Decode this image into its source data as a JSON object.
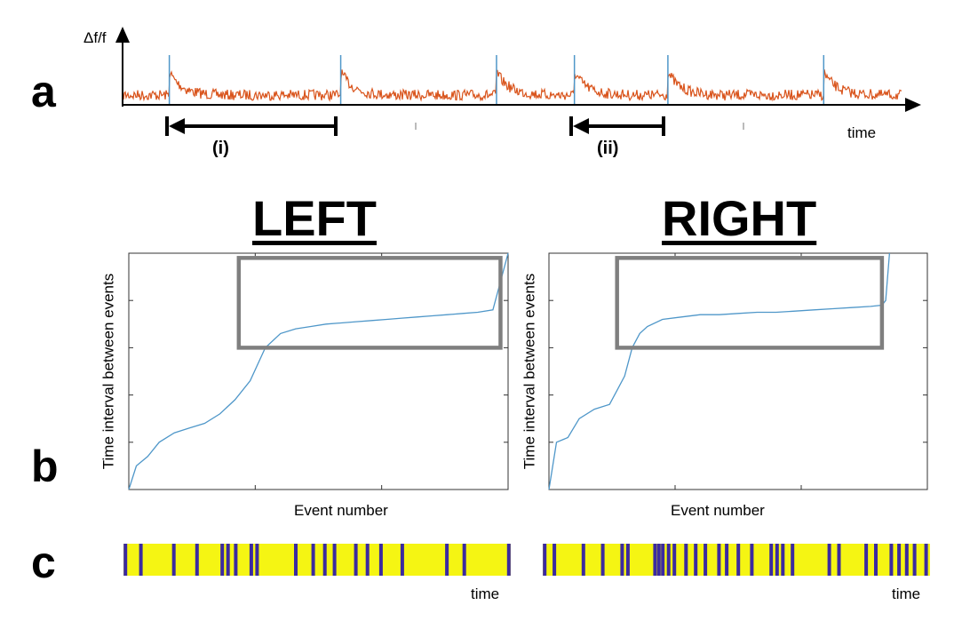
{
  "panels": {
    "a": "a",
    "b": "b",
    "c": "c"
  },
  "trace": {
    "ylabel": "Δf/f",
    "xlabel": "time",
    "interval_i": "(i)",
    "interval_ii": "(ii)",
    "color": "#d9541c",
    "spike_color": "#4f97c9"
  },
  "sides": {
    "left_title": "LEFT",
    "right_title": "RIGHT"
  },
  "chart_data": [
    {
      "type": "line",
      "panel": "a",
      "title": "",
      "xlabel": "time",
      "ylabel": "Δf/f",
      "event_times": [
        0.06,
        0.28,
        0.48,
        0.58,
        0.7,
        0.9
      ],
      "intervals": [
        {
          "label": "(i)",
          "from": 0.06,
          "to": 0.28
        },
        {
          "label": "(ii)",
          "from": 0.58,
          "to": 0.7
        }
      ]
    },
    {
      "type": "line",
      "panel": "b",
      "title": "LEFT",
      "xlabel": "Event number",
      "ylabel": "Time interval between events",
      "x": [
        0,
        2,
        5,
        8,
        12,
        16,
        20,
        24,
        28,
        32,
        36,
        40,
        44,
        48,
        52,
        56,
        60,
        64,
        68,
        72,
        76,
        80,
        84,
        88,
        92,
        96,
        100
      ],
      "y": [
        0.0,
        0.1,
        0.14,
        0.2,
        0.24,
        0.26,
        0.28,
        0.32,
        0.38,
        0.46,
        0.6,
        0.66,
        0.68,
        0.69,
        0.7,
        0.705,
        0.71,
        0.715,
        0.72,
        0.725,
        0.73,
        0.735,
        0.74,
        0.745,
        0.75,
        0.76,
        1.0
      ],
      "box": {
        "x": [
          29,
          98
        ],
        "y": [
          0.6,
          0.98
        ]
      }
    },
    {
      "type": "line",
      "panel": "b",
      "title": "RIGHT",
      "xlabel": "Event number",
      "ylabel": "Time interval between events",
      "x": [
        0,
        2,
        5,
        8,
        12,
        16,
        18,
        20,
        22,
        24,
        26,
        30,
        35,
        40,
        45,
        50,
        55,
        60,
        65,
        70,
        75,
        80,
        85,
        88,
        89,
        90
      ],
      "y": [
        0.0,
        0.2,
        0.22,
        0.3,
        0.34,
        0.36,
        0.42,
        0.48,
        0.6,
        0.66,
        0.69,
        0.72,
        0.73,
        0.74,
        0.74,
        0.745,
        0.75,
        0.75,
        0.755,
        0.76,
        0.765,
        0.77,
        0.775,
        0.78,
        0.8,
        1.0
      ],
      "box": {
        "x": [
          18,
          88
        ],
        "y": [
          0.6,
          0.98
        ]
      }
    },
    {
      "type": "heatmap",
      "panel": "c",
      "title": "LEFT",
      "xlabel": "time",
      "background": "#f5f513",
      "event_color": "#3b2aa0",
      "events": [
        0.005,
        0.045,
        0.13,
        0.19,
        0.255,
        0.27,
        0.29,
        0.33,
        0.345,
        0.445,
        0.49,
        0.52,
        0.545,
        0.6,
        0.63,
        0.665,
        0.72,
        0.835,
        0.88,
        0.995
      ]
    },
    {
      "type": "heatmap",
      "panel": "c",
      "title": "RIGHT",
      "xlabel": "time",
      "background": "#f5f513",
      "event_color": "#3b2aa0",
      "events": [
        0.005,
        0.03,
        0.105,
        0.155,
        0.205,
        0.22,
        0.29,
        0.3,
        0.31,
        0.325,
        0.34,
        0.37,
        0.395,
        0.42,
        0.455,
        0.475,
        0.505,
        0.54,
        0.59,
        0.605,
        0.62,
        0.645,
        0.74,
        0.765,
        0.835,
        0.86,
        0.9,
        0.92,
        0.94,
        0.96,
        0.99
      ]
    }
  ]
}
